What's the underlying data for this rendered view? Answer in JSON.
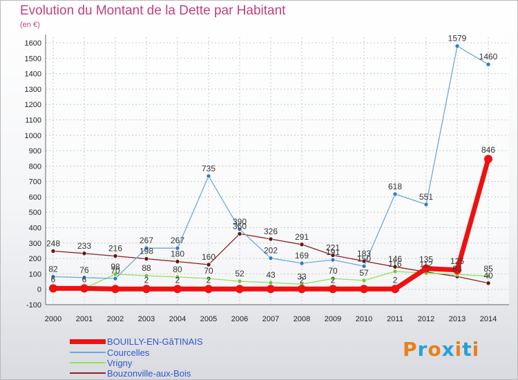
{
  "title": "Evolution du Montant de la Dette par Habitant",
  "unit": "(en €)",
  "logo": {
    "text": "Proxiti",
    "letters": [
      {
        "ch": "P",
        "color": "#e8801c"
      },
      {
        "ch": "r",
        "color": "#2a9fd8"
      },
      {
        "ch": "o",
        "color": "#e8801c"
      },
      {
        "ch": "x",
        "color": "#2a9fd8"
      },
      {
        "ch": "i",
        "color": "#e8801c"
      },
      {
        "ch": "t",
        "color": "#2a9fd8"
      },
      {
        "ch": "i",
        "color": "#e8801c"
      }
    ]
  },
  "chart_data": {
    "type": "line",
    "title": "Evolution du Montant de la Dette par Habitant",
    "ylabel": "(en €)",
    "xlabel": "",
    "ylim": [
      -100,
      1600
    ],
    "yticks": [
      -100,
      0,
      100,
      200,
      300,
      400,
      500,
      600,
      700,
      800,
      900,
      1000,
      1100,
      1200,
      1300,
      1400,
      1500,
      1600
    ],
    "x": [
      2000,
      2001,
      2002,
      2003,
      2004,
      2005,
      2006,
      2007,
      2008,
      2009,
      2010,
      2011,
      2012,
      2013,
      2014
    ],
    "grid": true,
    "legend_position": "bottom-left",
    "series": [
      {
        "name": "BOUILLY-EN-GâTINAIS",
        "color": "#ee1111",
        "marker": "#ee1111",
        "width": 7,
        "radius": 6,
        "values": [
          6,
          6,
          2,
          2,
          2,
          2,
          2,
          2,
          2,
          2,
          2,
          2,
          135,
          125,
          846
        ],
        "labels": [
          "6",
          "6",
          "",
          "2",
          "2",
          "2",
          "",
          "",
          "2",
          "2",
          "",
          "2",
          "135",
          "125",
          "846"
        ]
      },
      {
        "name": "Courcelles",
        "color": "#6aa8dc",
        "marker": "#2e7fc4",
        "width": 1.3,
        "radius": 3,
        "values": [
          82,
          76,
          70,
          267,
          267,
          735,
          390,
          202,
          169,
          191,
          150,
          618,
          551,
          1579,
          1460
        ],
        "labels": [
          "82",
          "76",
          "70",
          "267",
          "267",
          "735",
          "390",
          "202",
          "169",
          "191",
          "150",
          "618",
          "551",
          "1579",
          "1460"
        ]
      },
      {
        "name": "Vrigny",
        "color": "#90e060",
        "marker": "#70c840",
        "width": 1.3,
        "radius": 3,
        "values": [
          6,
          6,
          98,
          88,
          80,
          70,
          52,
          43,
          33,
          70,
          57,
          116,
          105,
          97,
          85
        ],
        "labels": [
          "",
          "",
          "98",
          "88",
          "80",
          "70",
          "52",
          "43",
          "33",
          "70",
          "57",
          "116",
          "",
          "",
          "85"
        ]
      },
      {
        "name": "Bouzonville-aux-Bois",
        "color": "#8c2020",
        "marker": "#6a1010",
        "width": 1.3,
        "radius": 3,
        "values": [
          248,
          233,
          216,
          198,
          180,
          160,
          360,
          326,
          291,
          221,
          183,
          146,
          112,
          83,
          40
        ],
        "labels": [
          "248",
          "233",
          "216",
          "198",
          "180",
          "160",
          "360",
          "326",
          "291",
          "221",
          "183",
          "146",
          "112",
          "83",
          "40"
        ]
      }
    ]
  }
}
